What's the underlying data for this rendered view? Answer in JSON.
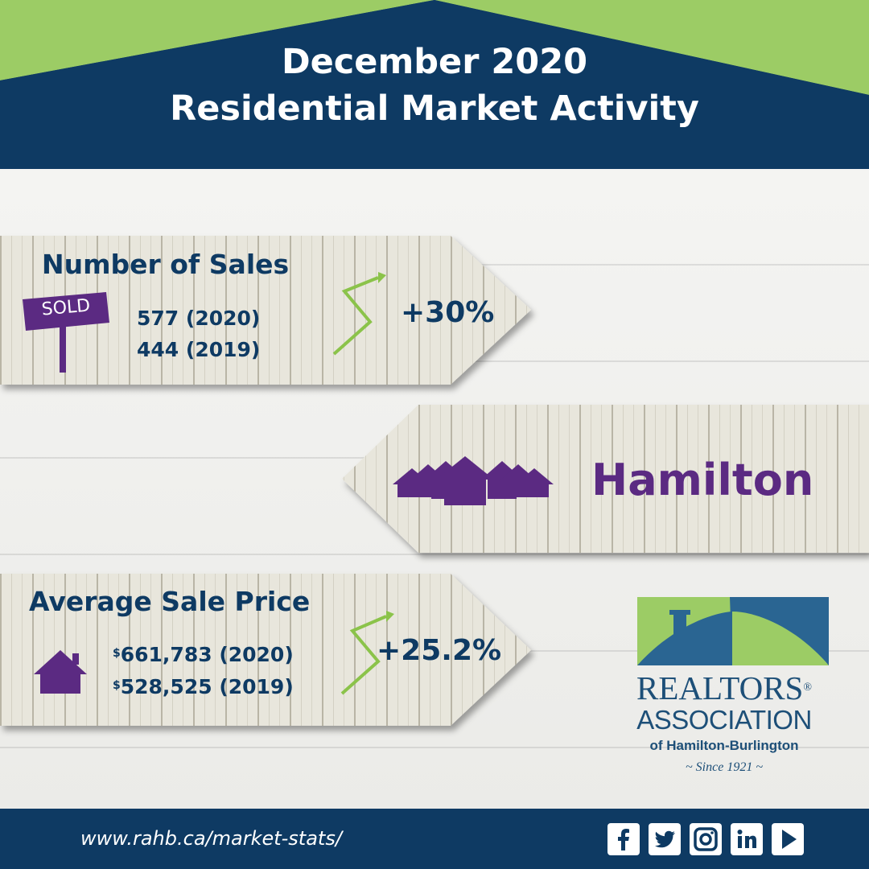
{
  "header": {
    "title_line1": "December 2020",
    "title_line2": "Residential Market Activity"
  },
  "sales": {
    "label": "Number of Sales",
    "sold_sign": "SOLD",
    "value_2020": "577 (2020)",
    "value_2019": "444 (2019)",
    "change": "+30%"
  },
  "region": {
    "name": "Hamilton"
  },
  "price": {
    "label": "Average Sale Price",
    "currency_symbol": "$",
    "value_2020": "661,783 (2020)",
    "value_2019": "528,525 (2019)",
    "change": "+25.2%"
  },
  "logo": {
    "line1": "REALTORS",
    "registered": "®",
    "line2": "ASSOCIATION",
    "line3": "of Hamilton-Burlington",
    "since": "~ Since 1921 ~"
  },
  "footer": {
    "url": "www.rahb.ca/market-stats/",
    "social_icons": [
      "facebook-icon",
      "twitter-icon",
      "instagram-icon",
      "linkedin-icon",
      "youtube-icon"
    ]
  },
  "colors": {
    "navy": "#0e3a63",
    "green": "#9ccc65",
    "purple": "#5b2a82",
    "arrow_green": "#8bc34a",
    "logo_blue": "#2a6592"
  }
}
